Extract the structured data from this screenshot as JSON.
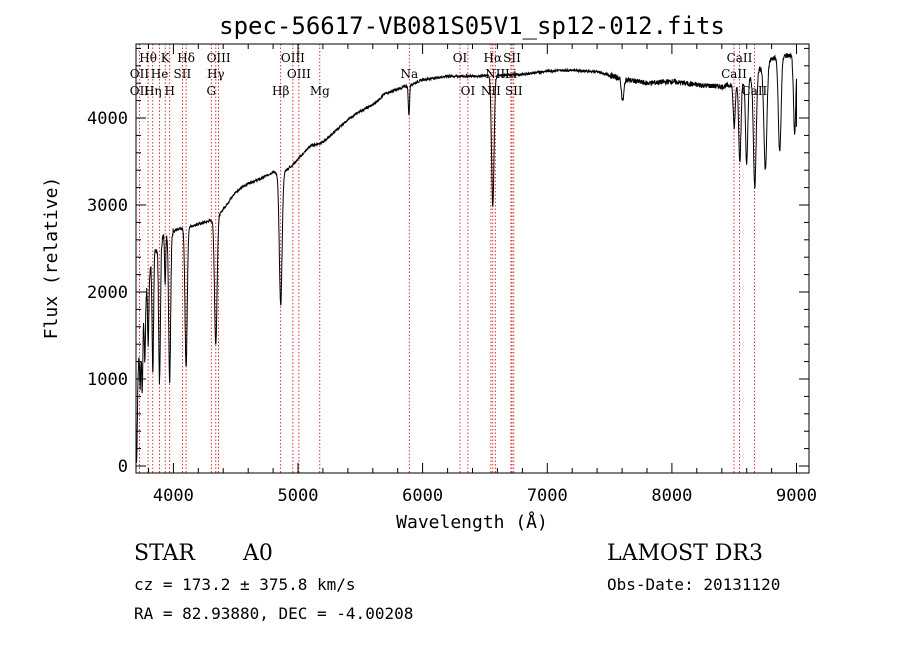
{
  "chart_data": {
    "type": "line",
    "title": "spec-56617-VB081S05V1_sp12-012.fits",
    "xlabel": "Wavelength (Å)",
    "ylabel": "Flux (relative)",
    "xlim": [
      3700,
      9100
    ],
    "ylim": [
      -80,
      4850
    ],
    "xticks": [
      4000,
      5000,
      6000,
      7000,
      8000,
      9000
    ],
    "xtick_labels": [
      "4000",
      "5000",
      "6000",
      "7000",
      "8000",
      "9000"
    ],
    "yticks": [
      0,
      1000,
      2000,
      3000,
      4000
    ],
    "ytick_labels": [
      "0",
      "1000",
      "2000",
      "3000",
      "4000"
    ],
    "continuum": [
      [
        3700,
        900
      ],
      [
        3760,
        1800
      ],
      [
        3800,
        2200
      ],
      [
        3850,
        2450
      ],
      [
        3900,
        2600
      ],
      [
        3950,
        2680
      ],
      [
        4050,
        2720
      ],
      [
        4150,
        2760
      ],
      [
        4300,
        2820
      ],
      [
        4350,
        2850
      ],
      [
        4400,
        2950
      ],
      [
        4500,
        3150
      ],
      [
        4600,
        3250
      ],
      [
        4700,
        3300
      ],
      [
        4800,
        3380
      ],
      [
        4860,
        3350
      ],
      [
        4950,
        3450
      ],
      [
        5100,
        3680
      ],
      [
        5200,
        3720
      ],
      [
        5300,
        3850
      ],
      [
        5400,
        3980
      ],
      [
        5500,
        4080
      ],
      [
        5600,
        4150
      ],
      [
        5700,
        4280
      ],
      [
        5800,
        4330
      ],
      [
        5900,
        4380
      ],
      [
        6000,
        4440
      ],
      [
        6200,
        4480
      ],
      [
        6400,
        4480
      ],
      [
        6600,
        4490
      ],
      [
        6800,
        4500
      ],
      [
        7000,
        4540
      ],
      [
        7200,
        4550
      ],
      [
        7400,
        4530
      ],
      [
        7600,
        4450
      ],
      [
        7800,
        4400
      ],
      [
        8000,
        4420
      ],
      [
        8200,
        4380
      ],
      [
        8400,
        4360
      ],
      [
        8600,
        4420
      ],
      [
        8700,
        4560
      ],
      [
        8800,
        4680
      ],
      [
        8900,
        4720
      ],
      [
        9000,
        4700
      ]
    ],
    "absorption_features": [
      {
        "center": 3705,
        "depth": 900,
        "width": 6
      },
      {
        "center": 3734,
        "depth": 500,
        "width": 4
      },
      {
        "center": 3750,
        "depth": 800,
        "width": 5
      },
      {
        "center": 3771,
        "depth": 700,
        "width": 5
      },
      {
        "center": 3798,
        "depth": 800,
        "width": 5
      },
      {
        "center": 3835,
        "depth": 1300,
        "width": 6
      },
      {
        "center": 3889,
        "depth": 1600,
        "width": 7
      },
      {
        "center": 3934,
        "depth": 600,
        "width": 4
      },
      {
        "center": 3970,
        "depth": 1700,
        "width": 8
      },
      {
        "center": 4102,
        "depth": 1600,
        "width": 9
      },
      {
        "center": 4340,
        "depth": 1450,
        "width": 10
      },
      {
        "center": 4861,
        "depth": 1500,
        "width": 11
      },
      {
        "center": 5890,
        "depth": 350,
        "width": 5
      },
      {
        "center": 6563,
        "depth": 1500,
        "width": 10
      },
      {
        "center": 7605,
        "depth": 250,
        "width": 10
      },
      {
        "center": 8500,
        "depth": 500,
        "width": 8
      },
      {
        "center": 8545,
        "depth": 900,
        "width": 9
      },
      {
        "center": 8600,
        "depth": 950,
        "width": 9
      },
      {
        "center": 8665,
        "depth": 1300,
        "width": 11
      },
      {
        "center": 8750,
        "depth": 1200,
        "width": 12
      },
      {
        "center": 8865,
        "depth": 1100,
        "width": 11
      },
      {
        "center": 8985,
        "depth": 900,
        "width": 9
      }
    ],
    "line_markers": [
      3727,
      3797,
      3835,
      3889,
      3934,
      3970,
      4072,
      4102,
      4304,
      4340,
      4363,
      4861,
      4959,
      5007,
      5175,
      5893,
      6300,
      6363,
      6548,
      6563,
      6583,
      6708,
      6717,
      6731,
      8498,
      8542,
      8662
    ],
    "line_labels": [
      {
        "text": "Hθ",
        "wave": 3797,
        "row": 1
      },
      {
        "text": "K",
        "wave": 3934,
        "row": 1
      },
      {
        "text": "Hδ",
        "wave": 4102,
        "row": 1
      },
      {
        "text": "OIII",
        "wave": 4363,
        "row": 1
      },
      {
        "text": "OIII",
        "wave": 4959,
        "row": 1
      },
      {
        "text": "OI",
        "wave": 6300,
        "row": 1
      },
      {
        "text": "Hα",
        "wave": 6563,
        "row": 1
      },
      {
        "text": "SII",
        "wave": 6717,
        "row": 1
      },
      {
        "text": "CaII",
        "wave": 8542,
        "row": 1
      },
      {
        "text": "OII",
        "wave": 3727,
        "row": 2
      },
      {
        "text": "He",
        "wave": 3889,
        "row": 2
      },
      {
        "text": "SII",
        "wave": 4072,
        "row": 2
      },
      {
        "text": "Hγ",
        "wave": 4340,
        "row": 2
      },
      {
        "text": "OIII",
        "wave": 5007,
        "row": 2
      },
      {
        "text": "Na",
        "wave": 5893,
        "row": 2
      },
      {
        "text": "NII",
        "wave": 6583,
        "row": 2
      },
      {
        "text": "Li",
        "wave": 6708,
        "row": 2
      },
      {
        "text": "CaII",
        "wave": 8498,
        "row": 2
      },
      {
        "text": "OII",
        "wave": 3727,
        "row": 3
      },
      {
        "text": "Hη",
        "wave": 3835,
        "row": 3
      },
      {
        "text": "H",
        "wave": 3970,
        "row": 3
      },
      {
        "text": "G",
        "wave": 4304,
        "row": 3
      },
      {
        "text": "Hβ",
        "wave": 4861,
        "row": 3
      },
      {
        "text": "Mg",
        "wave": 5175,
        "row": 3
      },
      {
        "text": "OI",
        "wave": 6363,
        "row": 3
      },
      {
        "text": "NII",
        "wave": 6548,
        "row": 3
      },
      {
        "text": "SII",
        "wave": 6731,
        "row": 3
      },
      {
        "text": "CaII",
        "wave": 8662,
        "row": 3
      }
    ]
  },
  "info": {
    "object_class": "STAR",
    "subclass": "A0",
    "survey": "LAMOST DR3",
    "cz_line": "cz = 173.2 ± 375.8 km/s",
    "obs_date_line": "Obs-Date: 20131120",
    "coords_line": "RA =  82.93880, DEC =  -4.00208"
  },
  "colors": {
    "spectrum": "#000000",
    "marker": "#cc0000",
    "axis": "#000000",
    "background": "#ffffff"
  }
}
